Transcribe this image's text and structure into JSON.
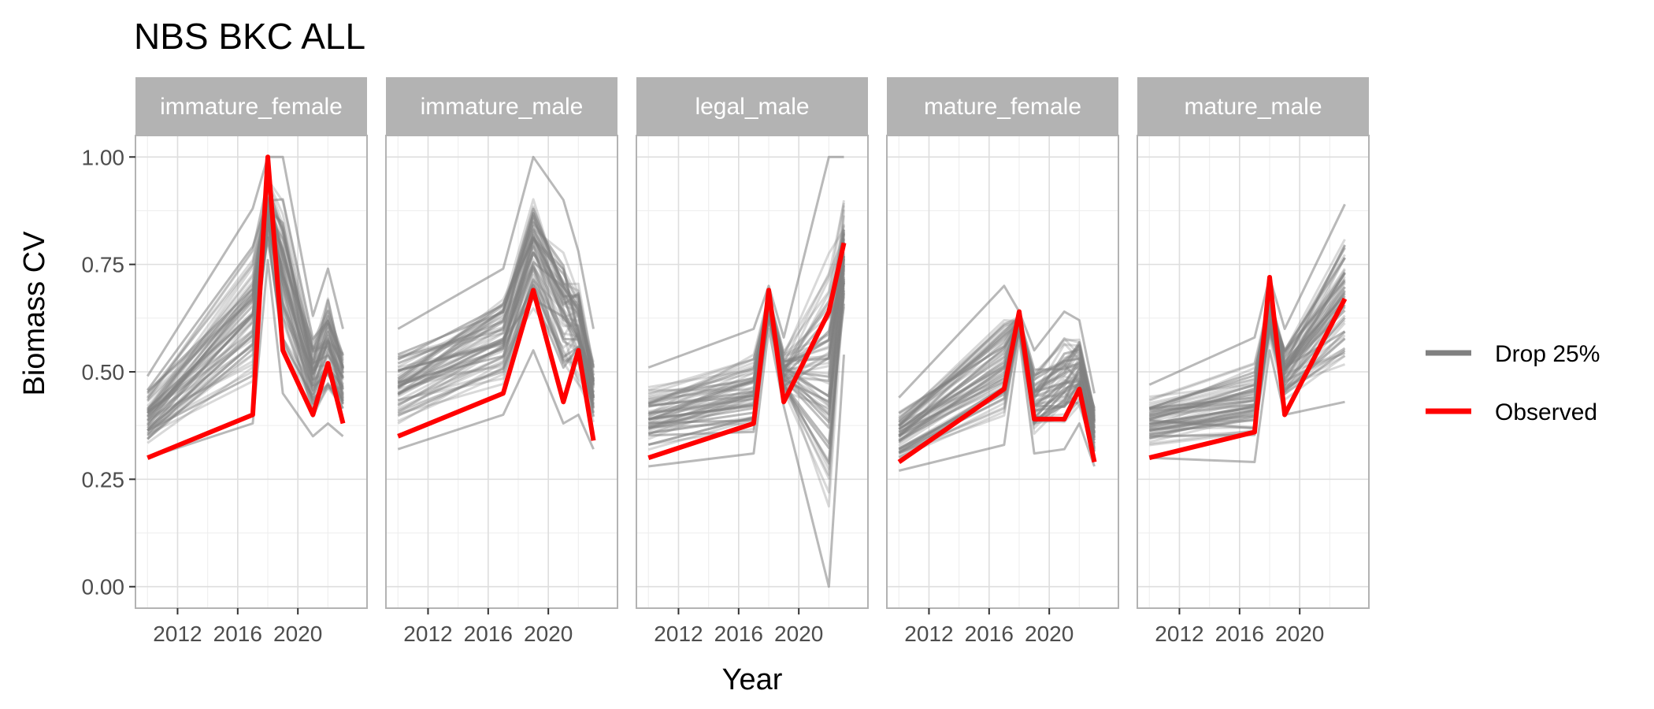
{
  "chart_data": {
    "type": "line",
    "title": "NBS BKC ALL",
    "xlabel": "Year",
    "ylabel": "Biomass CV",
    "xlim": [
      2009.2,
      2024.6
    ],
    "ylim": [
      -0.05,
      1.05
    ],
    "x_ticks": [
      2012,
      2016,
      2020
    ],
    "x_tick_labels": [
      "2012",
      "2016",
      "2020"
    ],
    "y_ticks": [
      0.0,
      0.25,
      0.5,
      0.75,
      1.0
    ],
    "y_tick_labels": [
      "0.00",
      "0.25",
      "0.50",
      "0.75",
      "1.00"
    ],
    "grid": true,
    "legend": {
      "position": "right",
      "entries": [
        {
          "label": "Drop 25%",
          "color": "#808080"
        },
        {
          "label": "Observed",
          "color": "#ff0000"
        }
      ]
    },
    "colors": {
      "strip_bg": "#b3b3b3",
      "panel_border": "#b3b3b3",
      "grid_major": "#dedede",
      "grid_minor": "#efefef",
      "drop": "#808080",
      "observed": "#ff0000"
    },
    "panels": [
      {
        "name": "immature_female",
        "observed": {
          "x": [
            2010,
            2017,
            2018,
            2019,
            2021,
            2022,
            2023
          ],
          "y": [
            0.3,
            0.4,
            1.0,
            0.55,
            0.4,
            0.52,
            0.38
          ]
        },
        "drop_summary": {
          "x": [
            2010,
            2017,
            2018,
            2019,
            2021,
            2022,
            2023
          ],
          "low": [
            0.3,
            0.38,
            0.76,
            0.45,
            0.35,
            0.38,
            0.35
          ],
          "high": [
            0.49,
            0.88,
            1.0,
            1.0,
            0.63,
            0.74,
            0.6
          ]
        }
      },
      {
        "name": "immature_male",
        "observed": {
          "x": [
            2010,
            2017,
            2019,
            2021,
            2022,
            2023
          ],
          "y": [
            0.35,
            0.45,
            0.69,
            0.43,
            0.55,
            0.34
          ]
        },
        "drop_summary": {
          "x": [
            2010,
            2017,
            2019,
            2021,
            2022,
            2023
          ],
          "low": [
            0.32,
            0.4,
            0.55,
            0.38,
            0.4,
            0.32
          ],
          "high": [
            0.6,
            0.74,
            1.0,
            0.9,
            0.78,
            0.6
          ]
        }
      },
      {
        "name": "legal_male",
        "observed": {
          "x": [
            2010,
            2017,
            2018,
            2019,
            2022,
            2023
          ],
          "y": [
            0.3,
            0.38,
            0.69,
            0.43,
            0.64,
            0.8
          ]
        },
        "drop_summary": {
          "x": [
            2010,
            2017,
            2018,
            2019,
            2022,
            2023
          ],
          "low": [
            0.28,
            0.31,
            0.6,
            0.42,
            0.0,
            0.54
          ],
          "high": [
            0.51,
            0.6,
            0.7,
            0.58,
            1.0,
            1.0
          ]
        }
      },
      {
        "name": "mature_female",
        "observed": {
          "x": [
            2010,
            2017,
            2018,
            2019,
            2021,
            2022,
            2023
          ],
          "y": [
            0.29,
            0.46,
            0.64,
            0.39,
            0.39,
            0.46,
            0.29
          ]
        },
        "drop_summary": {
          "x": [
            2010,
            2017,
            2018,
            2019,
            2021,
            2022,
            2023
          ],
          "low": [
            0.27,
            0.33,
            0.58,
            0.31,
            0.32,
            0.38,
            0.28
          ],
          "high": [
            0.44,
            0.7,
            0.64,
            0.55,
            0.64,
            0.62,
            0.45
          ]
        }
      },
      {
        "name": "mature_male",
        "observed": {
          "x": [
            2010,
            2017,
            2018,
            2019,
            2023
          ],
          "y": [
            0.3,
            0.36,
            0.72,
            0.4,
            0.67
          ]
        },
        "drop_summary": {
          "x": [
            2010,
            2017,
            2018,
            2019,
            2023
          ],
          "low": [
            0.3,
            0.29,
            0.55,
            0.4,
            0.43
          ],
          "high": [
            0.47,
            0.58,
            0.72,
            0.6,
            0.89
          ]
        }
      }
    ]
  }
}
